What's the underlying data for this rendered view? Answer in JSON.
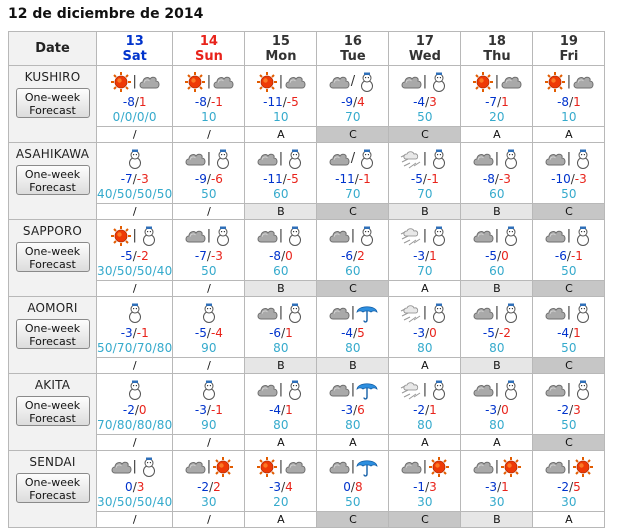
{
  "page": {
    "title": "12 de diciembre de 2014"
  },
  "header": {
    "date_label": "Date",
    "days": [
      {
        "num": "13",
        "dow": "Sat",
        "color": "sat"
      },
      {
        "num": "14",
        "dow": "Sun",
        "color": "sun"
      },
      {
        "num": "15",
        "dow": "Mon",
        "color": "wk"
      },
      {
        "num": "16",
        "dow": "Tue",
        "color": "wk"
      },
      {
        "num": "17",
        "dow": "Wed",
        "color": "wk"
      },
      {
        "num": "18",
        "dow": "Thu",
        "color": "wk"
      },
      {
        "num": "19",
        "dow": "Fri",
        "color": "wk"
      }
    ]
  },
  "button_label": "One-week Forecast",
  "cities": [
    {
      "name": "KUSHIRO",
      "days": [
        {
          "icons": [
            "sun",
            "cloud"
          ],
          "sep": "|",
          "min": "-8",
          "max": "1",
          "pop": "0/0/0/0",
          "rel": "/"
        },
        {
          "icons": [
            "sun",
            "cloud"
          ],
          "sep": "|",
          "min": "-8",
          "max": "-1",
          "pop": "10",
          "rel": "/"
        },
        {
          "icons": [
            "sun",
            "cloud"
          ],
          "sep": "|",
          "min": "-11",
          "max": "-5",
          "pop": "10",
          "rel": "A"
        },
        {
          "icons": [
            "cloud",
            "snow"
          ],
          "sep": "/",
          "min": "-9",
          "max": "4",
          "pop": "70",
          "rel": "C"
        },
        {
          "icons": [
            "cloud",
            "snow"
          ],
          "sep": "|",
          "min": "-4",
          "max": "3",
          "pop": "50",
          "rel": "C"
        },
        {
          "icons": [
            "sun",
            "cloud"
          ],
          "sep": "|",
          "min": "-7",
          "max": "1",
          "pop": "20",
          "rel": "A"
        },
        {
          "icons": [
            "sun",
            "cloud"
          ],
          "sep": "|",
          "min": "-8",
          "max": "1",
          "pop": "10",
          "rel": "A"
        }
      ]
    },
    {
      "name": "ASAHIKAWA",
      "days": [
        {
          "icons": [
            "snow"
          ],
          "sep": "",
          "min": "-7",
          "max": "-3",
          "pop": "40/50/50/50",
          "rel": "/"
        },
        {
          "icons": [
            "cloud",
            "snow"
          ],
          "sep": "|",
          "min": "-9",
          "max": "-6",
          "pop": "50",
          "rel": "/"
        },
        {
          "icons": [
            "cloud",
            "snow"
          ],
          "sep": "|",
          "min": "-11",
          "max": "-5",
          "pop": "60",
          "rel": "B"
        },
        {
          "icons": [
            "cloud",
            "snow"
          ],
          "sep": "/",
          "min": "-11",
          "max": "-1",
          "pop": "70",
          "rel": "C"
        },
        {
          "icons": [
            "storm",
            "snow"
          ],
          "sep": "|",
          "min": "-5",
          "max": "-1",
          "pop": "70",
          "rel": "B"
        },
        {
          "icons": [
            "cloud",
            "snow"
          ],
          "sep": "|",
          "min": "-8",
          "max": "-3",
          "pop": "60",
          "rel": "B"
        },
        {
          "icons": [
            "cloud",
            "snow"
          ],
          "sep": "|",
          "min": "-10",
          "max": "-3",
          "pop": "50",
          "rel": "C"
        }
      ]
    },
    {
      "name": "SAPPORO",
      "days": [
        {
          "icons": [
            "sun",
            "snow"
          ],
          "sep": "|",
          "min": "-5",
          "max": "-2",
          "pop": "30/50/50/40",
          "rel": "/"
        },
        {
          "icons": [
            "cloud",
            "snow"
          ],
          "sep": "|",
          "min": "-7",
          "max": "-3",
          "pop": "50",
          "rel": "/"
        },
        {
          "icons": [
            "cloud",
            "snow"
          ],
          "sep": "|",
          "min": "-8",
          "max": "0",
          "pop": "60",
          "rel": "B"
        },
        {
          "icons": [
            "cloud",
            "snow"
          ],
          "sep": "|",
          "min": "-6",
          "max": "2",
          "pop": "60",
          "rel": "C"
        },
        {
          "icons": [
            "storm",
            "snow"
          ],
          "sep": "|",
          "min": "-3",
          "max": "1",
          "pop": "70",
          "rel": "A"
        },
        {
          "icons": [
            "cloud",
            "snow"
          ],
          "sep": "|",
          "min": "-5",
          "max": "0",
          "pop": "60",
          "rel": "B"
        },
        {
          "icons": [
            "cloud",
            "snow"
          ],
          "sep": "|",
          "min": "-6",
          "max": "-1",
          "pop": "50",
          "rel": "C"
        }
      ]
    },
    {
      "name": "AOMORI",
      "days": [
        {
          "icons": [
            "snow"
          ],
          "sep": "",
          "min": "-3",
          "max": "-1",
          "pop": "50/70/70/80",
          "rel": "/"
        },
        {
          "icons": [
            "snow"
          ],
          "sep": "",
          "min": "-5",
          "max": "-4",
          "pop": "90",
          "rel": "/"
        },
        {
          "icons": [
            "cloud",
            "snow"
          ],
          "sep": "|",
          "min": "-6",
          "max": "1",
          "pop": "80",
          "rel": "B"
        },
        {
          "icons": [
            "cloud",
            "umbrella"
          ],
          "sep": "|",
          "min": "-4",
          "max": "5",
          "pop": "80",
          "rel": "B"
        },
        {
          "icons": [
            "storm",
            "snow"
          ],
          "sep": "|",
          "min": "-3",
          "max": "0",
          "pop": "80",
          "rel": "A"
        },
        {
          "icons": [
            "cloud",
            "snow"
          ],
          "sep": "|",
          "min": "-5",
          "max": "-2",
          "pop": "80",
          "rel": "B"
        },
        {
          "icons": [
            "cloud",
            "snow"
          ],
          "sep": "|",
          "min": "-4",
          "max": "1",
          "pop": "50",
          "rel": "C"
        }
      ]
    },
    {
      "name": "AKITA",
      "days": [
        {
          "icons": [
            "snow"
          ],
          "sep": "",
          "min": "-2",
          "max": "0",
          "pop": "70/80/80/80",
          "rel": "/"
        },
        {
          "icons": [
            "snow"
          ],
          "sep": "",
          "min": "-3",
          "max": "-1",
          "pop": "90",
          "rel": "/"
        },
        {
          "icons": [
            "cloud",
            "snow"
          ],
          "sep": "|",
          "min": "-4",
          "max": "1",
          "pop": "80",
          "rel": "A"
        },
        {
          "icons": [
            "cloud",
            "umbrella"
          ],
          "sep": "|",
          "min": "-3",
          "max": "6",
          "pop": "80",
          "rel": "A"
        },
        {
          "icons": [
            "storm",
            "snow"
          ],
          "sep": "|",
          "min": "-2",
          "max": "1",
          "pop": "80",
          "rel": "A"
        },
        {
          "icons": [
            "cloud",
            "snow"
          ],
          "sep": "|",
          "min": "-3",
          "max": "0",
          "pop": "80",
          "rel": "A"
        },
        {
          "icons": [
            "cloud",
            "snow"
          ],
          "sep": "|",
          "min": "-2",
          "max": "3",
          "pop": "50",
          "rel": "C"
        }
      ]
    },
    {
      "name": "SENDAI",
      "days": [
        {
          "icons": [
            "cloud",
            "snow"
          ],
          "sep": "|",
          "min": "0",
          "max": "3",
          "pop": "30/50/50/40",
          "rel": "/"
        },
        {
          "icons": [
            "cloud",
            "sun"
          ],
          "sep": "|",
          "min": "-2",
          "max": "2",
          "pop": "30",
          "rel": "/"
        },
        {
          "icons": [
            "sun",
            "cloud"
          ],
          "sep": "|",
          "min": "-3",
          "max": "4",
          "pop": "20",
          "rel": "A"
        },
        {
          "icons": [
            "cloud",
            "umbrella"
          ],
          "sep": "|",
          "min": "0",
          "max": "8",
          "pop": "50",
          "rel": "C"
        },
        {
          "icons": [
            "cloud",
            "sun"
          ],
          "sep": "|",
          "min": "-1",
          "max": "3",
          "pop": "30",
          "rel": "C"
        },
        {
          "icons": [
            "cloud",
            "sun"
          ],
          "sep": "|",
          "min": "-3",
          "max": "1",
          "pop": "30",
          "rel": "B"
        },
        {
          "icons": [
            "cloud",
            "sun"
          ],
          "sep": "|",
          "min": "-2",
          "max": "5",
          "pop": "30",
          "rel": "A"
        }
      ]
    }
  ]
}
